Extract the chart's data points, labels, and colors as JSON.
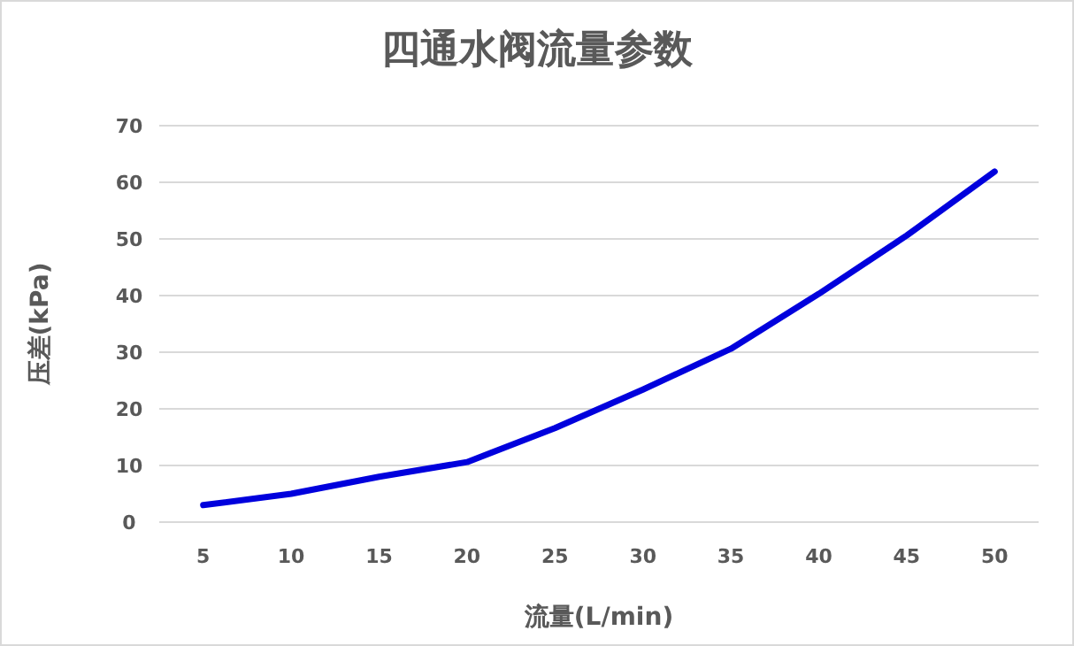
{
  "chart_data": {
    "type": "line",
    "title": "四通水阀流量参数",
    "xlabel": "流量(L/min)",
    "ylabel": "压差(kPa)",
    "categories": [
      "5",
      "10",
      "15",
      "20",
      "25",
      "30",
      "35",
      "40",
      "45",
      "50"
    ],
    "series": [
      {
        "color": "#0000dd",
        "values": [
          3,
          5,
          8,
          10.6,
          16.6,
          23.4,
          30.6,
          40.3,
          50.6,
          61.9
        ]
      }
    ],
    "ylim": [
      0,
      70
    ],
    "yticks": [
      0,
      10,
      20,
      30,
      40,
      50,
      60,
      70
    ],
    "grid": "y",
    "marker": "none",
    "line_style": "solid"
  }
}
